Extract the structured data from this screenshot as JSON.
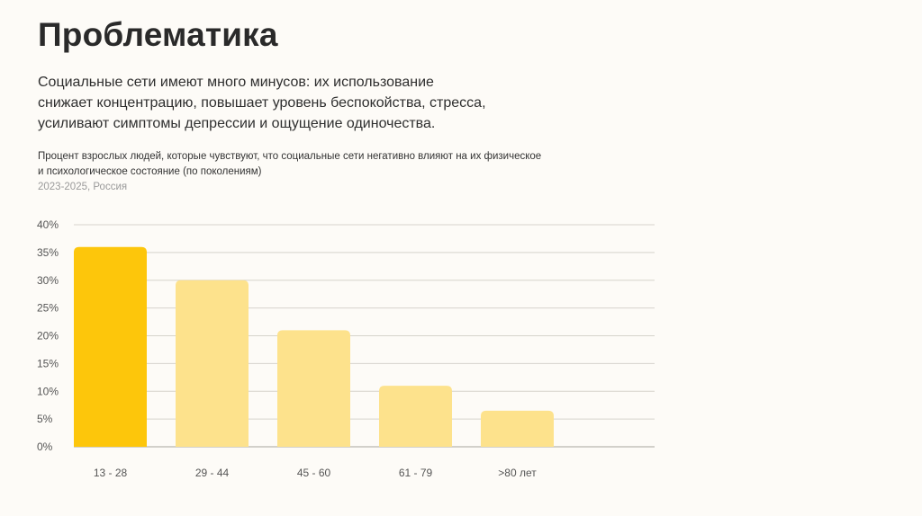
{
  "slide": {
    "title": "Проблематика",
    "lead": [
      "Социальные сети имеют много минусов: их использование",
      "снижает концентрацию, повышает уровень беспокойства, стресса,",
      "усиливают симптомы депрессии и ощущение одиночества."
    ]
  },
  "chart_data": {
    "type": "bar",
    "title_lines": [
      "Процент взрослых людей, которые чувствуют, что социальные сети негативно влияют на их физическое",
      "и психологическое состояние (по поколениям)"
    ],
    "subtitle": "2023-2025, Россия",
    "categories": [
      "13 - 28",
      "29 - 44",
      "45 - 60",
      "61 - 79",
      ">80 лет"
    ],
    "values": [
      36,
      30,
      21,
      11,
      6.5
    ],
    "y_ticks": [
      "40%",
      "35%",
      "30%",
      "25%",
      "20%",
      "15%",
      "10%",
      "5%",
      "0%"
    ],
    "ylim": [
      0,
      40
    ],
    "grid": true,
    "colors": {
      "highlight": "#fdc60b",
      "bar": "#fde28c",
      "grid": "#d6d3cc",
      "axis": "#a8a59e"
    }
  }
}
